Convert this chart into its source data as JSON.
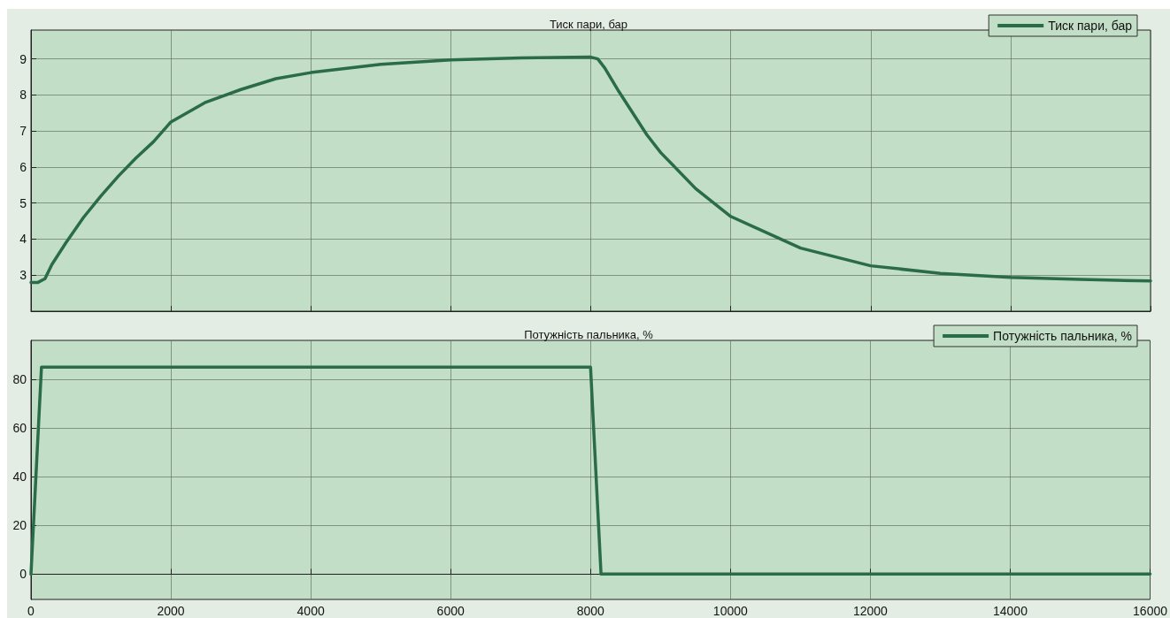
{
  "chart_data": [
    {
      "type": "line",
      "title": "Тиск пари, бар",
      "x": [
        0,
        100,
        200,
        300,
        500,
        750,
        1000,
        1250,
        1500,
        1750,
        2000,
        2500,
        3000,
        3500,
        4000,
        5000,
        6000,
        7000,
        8000,
        8100,
        8200,
        8400,
        8600,
        8800,
        9000,
        9500,
        10000,
        11000,
        12000,
        13000,
        14000,
        15000,
        16000
      ],
      "series": [
        {
          "name": "Тиск пари, бар",
          "color": "#2a6b48",
          "values": [
            2.8,
            2.8,
            2.9,
            3.3,
            3.9,
            4.6,
            5.2,
            5.75,
            6.25,
            6.7,
            7.25,
            7.8,
            8.15,
            8.45,
            8.62,
            8.85,
            8.97,
            9.03,
            9.05,
            9.0,
            8.75,
            8.1,
            7.5,
            6.9,
            6.4,
            5.4,
            4.63,
            3.75,
            3.26,
            3.05,
            2.94,
            2.88,
            2.84
          ]
        }
      ],
      "xlim": [
        0,
        16000
      ],
      "xticks": [
        0,
        2000,
        4000,
        6000,
        8000,
        10000,
        12000,
        14000,
        16000
      ],
      "ylim": [
        2,
        9.8
      ],
      "yticks": [
        3,
        4,
        5,
        6,
        7,
        8,
        9
      ],
      "grid": true,
      "legend": "top right",
      "tick_labels": "y",
      "marker": "none",
      "line_style": "solid"
    },
    {
      "type": "line",
      "title": "Потужність пальника, %",
      "x": [
        0,
        150,
        8000,
        8150,
        16000
      ],
      "series": [
        {
          "name": "Потужність пальника, %",
          "color": "#2a6b48",
          "values": [
            0,
            85,
            85,
            0,
            0
          ]
        }
      ],
      "xlim": [
        0,
        16000
      ],
      "xticks": [
        0,
        2000,
        4000,
        6000,
        8000,
        10000,
        12000,
        14000,
        16000
      ],
      "ylim": [
        -10.4,
        96
      ],
      "yticks": [
        0,
        20,
        40,
        60,
        80
      ],
      "grid": true,
      "legend": "top right",
      "marker": "none",
      "line_style": "solid"
    }
  ]
}
